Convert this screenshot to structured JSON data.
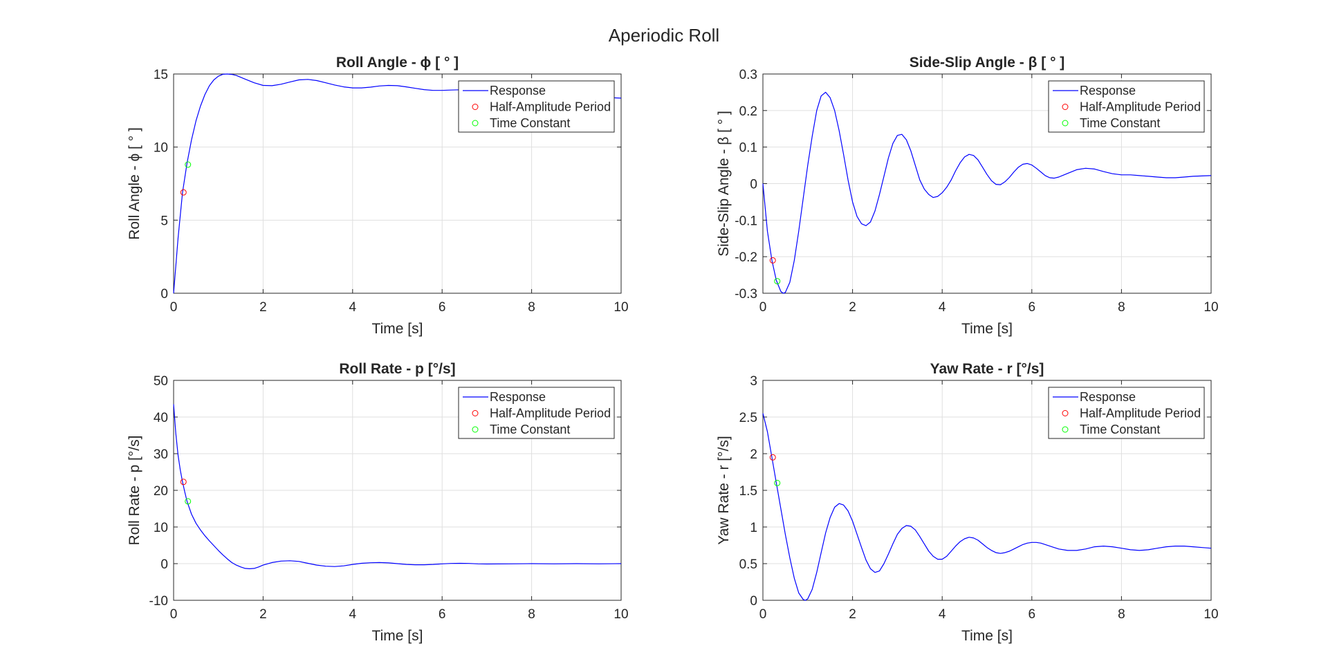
{
  "figure_title": "Aperiodic Roll",
  "colors": {
    "response": "#0000ff",
    "half_amplitude": "#ff0000",
    "time_constant": "#00ff00",
    "axes": "#262626",
    "grid": "#dfdfdf"
  },
  "chart_data": [
    {
      "type": "line",
      "title": "Roll Angle - ϕ [ ° ]",
      "xlabel": "Time [s]",
      "ylabel": "Roll Angle - ϕ [ ° ]",
      "xlim": [
        0,
        10
      ],
      "ylim": [
        0,
        15
      ],
      "xticks": [
        "0",
        "2",
        "4",
        "6",
        "8",
        "10"
      ],
      "yticks": [
        "0",
        "5",
        "10",
        "15"
      ],
      "grid": true,
      "legend_position": "top-right",
      "series": [
        {
          "name": "Response",
          "kind": "line",
          "x": [
            0,
            0.1,
            0.2,
            0.3,
            0.4,
            0.5,
            0.6,
            0.7,
            0.8,
            0.9,
            1.0,
            1.1,
            1.2,
            1.3,
            1.4,
            1.6,
            1.8,
            2.0,
            2.2,
            2.4,
            2.6,
            2.8,
            3.0,
            3.2,
            3.4,
            3.6,
            3.8,
            4.0,
            4.2,
            4.4,
            4.6,
            4.8,
            5.0,
            5.2,
            5.4,
            5.6,
            5.8,
            6.0,
            6.2,
            6.4,
            6.6,
            6.8,
            7.0,
            7.5,
            8.0,
            8.5,
            9.0,
            9.5,
            10.0
          ],
          "y": [
            0,
            3.8,
            6.9,
            8.9,
            10.5,
            11.8,
            12.8,
            13.6,
            14.2,
            14.6,
            14.85,
            14.98,
            15.0,
            14.97,
            14.9,
            14.65,
            14.4,
            14.22,
            14.2,
            14.3,
            14.45,
            14.6,
            14.63,
            14.55,
            14.4,
            14.25,
            14.12,
            14.05,
            14.05,
            14.1,
            14.18,
            14.22,
            14.2,
            14.12,
            14.02,
            13.93,
            13.88,
            13.88,
            13.9,
            13.92,
            13.9,
            13.85,
            13.78,
            13.72,
            13.65,
            13.58,
            13.5,
            13.42,
            13.35
          ]
        },
        {
          "name": "Half-Amplitude Period",
          "kind": "marker",
          "x": [
            0.22
          ],
          "y": [
            6.9
          ]
        },
        {
          "name": "Time Constant",
          "kind": "marker",
          "x": [
            0.32
          ],
          "y": [
            8.8
          ]
        }
      ]
    },
    {
      "type": "line",
      "title": "Side-Slip Angle - β [ ° ]",
      "xlabel": "Time [s]",
      "ylabel": "Side-Slip Angle - β [ ° ]",
      "xlim": [
        0,
        10
      ],
      "ylim": [
        -0.3,
        0.3
      ],
      "xticks": [
        "0",
        "2",
        "4",
        "6",
        "8",
        "10"
      ],
      "yticks": [
        "-0.3",
        "-0.2",
        "-0.1",
        "0",
        "0.1",
        "0.2",
        "0.3"
      ],
      "grid": true,
      "legend_position": "top-right",
      "series": [
        {
          "name": "Response",
          "kind": "line",
          "x": [
            0,
            0.1,
            0.2,
            0.3,
            0.4,
            0.45,
            0.5,
            0.6,
            0.7,
            0.8,
            0.9,
            1.0,
            1.1,
            1.2,
            1.3,
            1.4,
            1.5,
            1.6,
            1.7,
            1.8,
            1.9,
            2.0,
            2.1,
            2.2,
            2.3,
            2.4,
            2.5,
            2.6,
            2.7,
            2.8,
            2.9,
            3.0,
            3.1,
            3.2,
            3.3,
            3.4,
            3.5,
            3.6,
            3.7,
            3.8,
            3.9,
            4.0,
            4.1,
            4.2,
            4.3,
            4.4,
            4.5,
            4.6,
            4.7,
            4.8,
            4.9,
            5.0,
            5.1,
            5.2,
            5.3,
            5.4,
            5.5,
            5.6,
            5.7,
            5.8,
            5.9,
            6.0,
            6.1,
            6.2,
            6.3,
            6.4,
            6.5,
            6.6,
            6.8,
            7.0,
            7.2,
            7.4,
            7.6,
            7.8,
            8.0,
            8.2,
            8.4,
            8.6,
            8.8,
            9.0,
            9.2,
            9.4,
            9.6,
            9.8,
            10.0
          ],
          "y": [
            0,
            -0.13,
            -0.21,
            -0.265,
            -0.295,
            -0.3,
            -0.298,
            -0.27,
            -0.21,
            -0.13,
            -0.04,
            0.05,
            0.13,
            0.2,
            0.24,
            0.25,
            0.235,
            0.2,
            0.145,
            0.08,
            0.01,
            -0.05,
            -0.09,
            -0.11,
            -0.115,
            -0.105,
            -0.075,
            -0.03,
            0.02,
            0.07,
            0.11,
            0.132,
            0.135,
            0.12,
            0.09,
            0.05,
            0.01,
            -0.015,
            -0.03,
            -0.038,
            -0.035,
            -0.025,
            -0.01,
            0.01,
            0.035,
            0.057,
            0.073,
            0.08,
            0.077,
            0.065,
            0.045,
            0.025,
            0.008,
            -0.002,
            -0.003,
            0.005,
            0.017,
            0.032,
            0.045,
            0.053,
            0.055,
            0.051,
            0.042,
            0.032,
            0.022,
            0.016,
            0.015,
            0.018,
            0.028,
            0.038,
            0.042,
            0.04,
            0.033,
            0.027,
            0.024,
            0.024,
            0.022,
            0.02,
            0.018,
            0.016,
            0.016,
            0.018,
            0.02,
            0.021,
            0.022
          ]
        },
        {
          "name": "Half-Amplitude Period",
          "kind": "marker",
          "x": [
            0.22
          ],
          "y": [
            -0.21
          ]
        },
        {
          "name": "Time Constant",
          "kind": "marker",
          "x": [
            0.32
          ],
          "y": [
            -0.267
          ]
        }
      ]
    },
    {
      "type": "line",
      "title": "Roll Rate - p [°/s]",
      "xlabel": "Time [s]",
      "ylabel": "Roll Rate - p [°/s]",
      "xlim": [
        0,
        10
      ],
      "ylim": [
        -10,
        50
      ],
      "xticks": [
        "0",
        "2",
        "4",
        "6",
        "8",
        "10"
      ],
      "yticks": [
        "-10",
        "0",
        "10",
        "20",
        "30",
        "40",
        "50"
      ],
      "grid": true,
      "legend_position": "top-right",
      "series": [
        {
          "name": "Response",
          "kind": "line",
          "x": [
            0,
            0.05,
            0.1,
            0.15,
            0.2,
            0.25,
            0.3,
            0.4,
            0.5,
            0.6,
            0.7,
            0.8,
            0.9,
            1.0,
            1.1,
            1.2,
            1.3,
            1.4,
            1.5,
            1.6,
            1.7,
            1.8,
            1.9,
            2.0,
            2.2,
            2.4,
            2.6,
            2.8,
            3.0,
            3.2,
            3.4,
            3.6,
            3.8,
            4.0,
            4.2,
            4.4,
            4.6,
            4.8,
            5.0,
            5.2,
            5.4,
            5.6,
            5.8,
            6.0,
            6.2,
            6.4,
            6.6,
            6.8,
            7.0,
            7.5,
            8.0,
            8.5,
            9.0,
            9.5,
            10.0
          ],
          "y": [
            43.5,
            35.5,
            29.5,
            25.5,
            22.3,
            19.5,
            17.0,
            13.5,
            11.0,
            9.2,
            7.6,
            6.2,
            4.9,
            3.6,
            2.4,
            1.3,
            0.3,
            -0.4,
            -0.9,
            -1.3,
            -1.4,
            -1.3,
            -0.9,
            -0.4,
            0.3,
            0.7,
            0.8,
            0.6,
            0.1,
            -0.4,
            -0.7,
            -0.8,
            -0.6,
            -0.2,
            0.1,
            0.25,
            0.3,
            0.2,
            0.0,
            -0.2,
            -0.3,
            -0.3,
            -0.2,
            -0.05,
            0.05,
            0.1,
            0.05,
            -0.05,
            -0.1,
            -0.05,
            0,
            -0.05,
            0,
            -0.05,
            0
          ]
        },
        {
          "name": "Half-Amplitude Period",
          "kind": "marker",
          "x": [
            0.22
          ],
          "y": [
            22.3
          ]
        },
        {
          "name": "Time Constant",
          "kind": "marker",
          "x": [
            0.32
          ],
          "y": [
            17.0
          ]
        }
      ]
    },
    {
      "type": "line",
      "title": "Yaw Rate - r [°/s]",
      "xlabel": "Time [s]",
      "ylabel": "Yaw Rate - r [°/s]",
      "xlim": [
        0,
        10
      ],
      "ylim": [
        0,
        3
      ],
      "xticks": [
        "0",
        "2",
        "4",
        "6",
        "8",
        "10"
      ],
      "yticks": [
        "0",
        "0.5",
        "1",
        "1.5",
        "2",
        "2.5",
        "3"
      ],
      "grid": true,
      "legend_position": "top-right",
      "series": [
        {
          "name": "Response",
          "kind": "line",
          "x": [
            0,
            0.1,
            0.2,
            0.3,
            0.4,
            0.5,
            0.6,
            0.7,
            0.8,
            0.9,
            0.95,
            1.0,
            1.1,
            1.2,
            1.3,
            1.4,
            1.5,
            1.6,
            1.7,
            1.8,
            1.9,
            2.0,
            2.1,
            2.2,
            2.3,
            2.4,
            2.5,
            2.6,
            2.7,
            2.8,
            2.9,
            3.0,
            3.1,
            3.2,
            3.3,
            3.4,
            3.5,
            3.6,
            3.7,
            3.8,
            3.9,
            4.0,
            4.1,
            4.2,
            4.3,
            4.4,
            4.5,
            4.6,
            4.7,
            4.8,
            4.9,
            5.0,
            5.1,
            5.2,
            5.3,
            5.4,
            5.5,
            5.6,
            5.7,
            5.8,
            5.9,
            6.0,
            6.1,
            6.2,
            6.4,
            6.6,
            6.8,
            7.0,
            7.2,
            7.4,
            7.6,
            7.8,
            8.0,
            8.2,
            8.4,
            8.6,
            8.8,
            9.0,
            9.2,
            9.4,
            9.6,
            9.8,
            10.0
          ],
          "y": [
            2.55,
            2.3,
            1.95,
            1.6,
            1.25,
            0.9,
            0.58,
            0.3,
            0.1,
            0.01,
            0.0,
            0.02,
            0.15,
            0.38,
            0.65,
            0.92,
            1.13,
            1.27,
            1.32,
            1.3,
            1.22,
            1.08,
            0.9,
            0.72,
            0.55,
            0.43,
            0.38,
            0.4,
            0.5,
            0.63,
            0.77,
            0.9,
            0.98,
            1.02,
            1.01,
            0.96,
            0.87,
            0.77,
            0.67,
            0.6,
            0.56,
            0.56,
            0.6,
            0.67,
            0.74,
            0.8,
            0.84,
            0.86,
            0.85,
            0.82,
            0.77,
            0.72,
            0.68,
            0.65,
            0.64,
            0.65,
            0.67,
            0.7,
            0.73,
            0.76,
            0.78,
            0.79,
            0.79,
            0.78,
            0.74,
            0.7,
            0.68,
            0.68,
            0.7,
            0.73,
            0.74,
            0.73,
            0.71,
            0.69,
            0.68,
            0.69,
            0.71,
            0.73,
            0.74,
            0.74,
            0.73,
            0.72,
            0.71
          ]
        },
        {
          "name": "Half-Amplitude Period",
          "kind": "marker",
          "x": [
            0.22
          ],
          "y": [
            1.95
          ]
        },
        {
          "name": "Time Constant",
          "kind": "marker",
          "x": [
            0.32
          ],
          "y": [
            1.6
          ]
        }
      ]
    }
  ]
}
